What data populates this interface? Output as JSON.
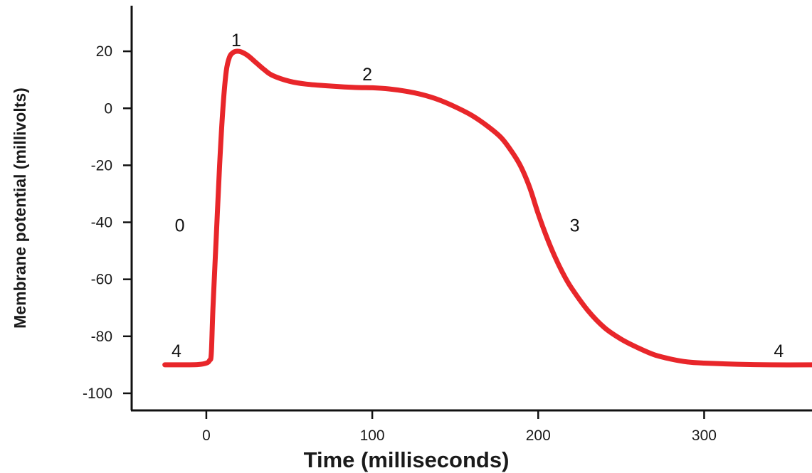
{
  "chart_data": {
    "type": "line",
    "title": "",
    "xlabel": "Time (milliseconds)",
    "ylabel": "Membrane potential (millivolts)",
    "xlim": [
      -45,
      365
    ],
    "ylim": [
      -106,
      36
    ],
    "x_ticks": [
      0,
      100,
      200,
      300
    ],
    "x_tick_labels": [
      "0",
      "100",
      "200",
      "300"
    ],
    "y_ticks": [
      20,
      0,
      -20,
      -40,
      -60,
      -80,
      -100
    ],
    "y_tick_labels": [
      "20",
      "0",
      "-20",
      "-40",
      "-60",
      "-80",
      "-100"
    ],
    "grid": false,
    "legend": "none",
    "series": [
      {
        "color": "#e8262a",
        "points": [
          [
            -25,
            -90
          ],
          [
            -15,
            -90
          ],
          [
            -5,
            -89.9
          ],
          [
            0,
            -89.4
          ],
          [
            2,
            -88.4
          ],
          [
            3,
            -86
          ],
          [
            4,
            -70
          ],
          [
            6,
            -45
          ],
          [
            8,
            -20
          ],
          [
            10,
            0
          ],
          [
            12,
            13
          ],
          [
            14,
            18
          ],
          [
            16,
            19.5
          ],
          [
            18,
            20
          ],
          [
            21,
            19.8
          ],
          [
            25,
            18.5
          ],
          [
            30,
            16
          ],
          [
            35,
            13.5
          ],
          [
            40,
            11.5
          ],
          [
            50,
            9.5
          ],
          [
            60,
            8.5
          ],
          [
            75,
            7.8
          ],
          [
            90,
            7.3
          ],
          [
            100,
            7.2
          ],
          [
            110,
            6.8
          ],
          [
            120,
            6
          ],
          [
            130,
            4.8
          ],
          [
            140,
            3
          ],
          [
            150,
            0.5
          ],
          [
            160,
            -2.5
          ],
          [
            170,
            -6.5
          ],
          [
            178,
            -10.5
          ],
          [
            185,
            -16
          ],
          [
            190,
            -21
          ],
          [
            195,
            -28
          ],
          [
            200,
            -37
          ],
          [
            205,
            -45
          ],
          [
            210,
            -52
          ],
          [
            215,
            -58
          ],
          [
            220,
            -63
          ],
          [
            230,
            -71
          ],
          [
            240,
            -77
          ],
          [
            250,
            -81
          ],
          [
            260,
            -84
          ],
          [
            270,
            -86.5
          ],
          [
            280,
            -88
          ],
          [
            290,
            -89
          ],
          [
            300,
            -89.4
          ],
          [
            320,
            -89.8
          ],
          [
            340,
            -90
          ],
          [
            365,
            -90
          ]
        ]
      }
    ],
    "annotations": [
      {
        "text": "1",
        "x": 18,
        "y": 24
      },
      {
        "text": "2",
        "x": 97,
        "y": 12
      },
      {
        "text": "0",
        "x": -16,
        "y": -41
      },
      {
        "text": "3",
        "x": 222,
        "y": -41
      },
      {
        "text": "4",
        "x": -18,
        "y": -85
      },
      {
        "text": "4",
        "x": 345,
        "y": -85
      }
    ]
  }
}
